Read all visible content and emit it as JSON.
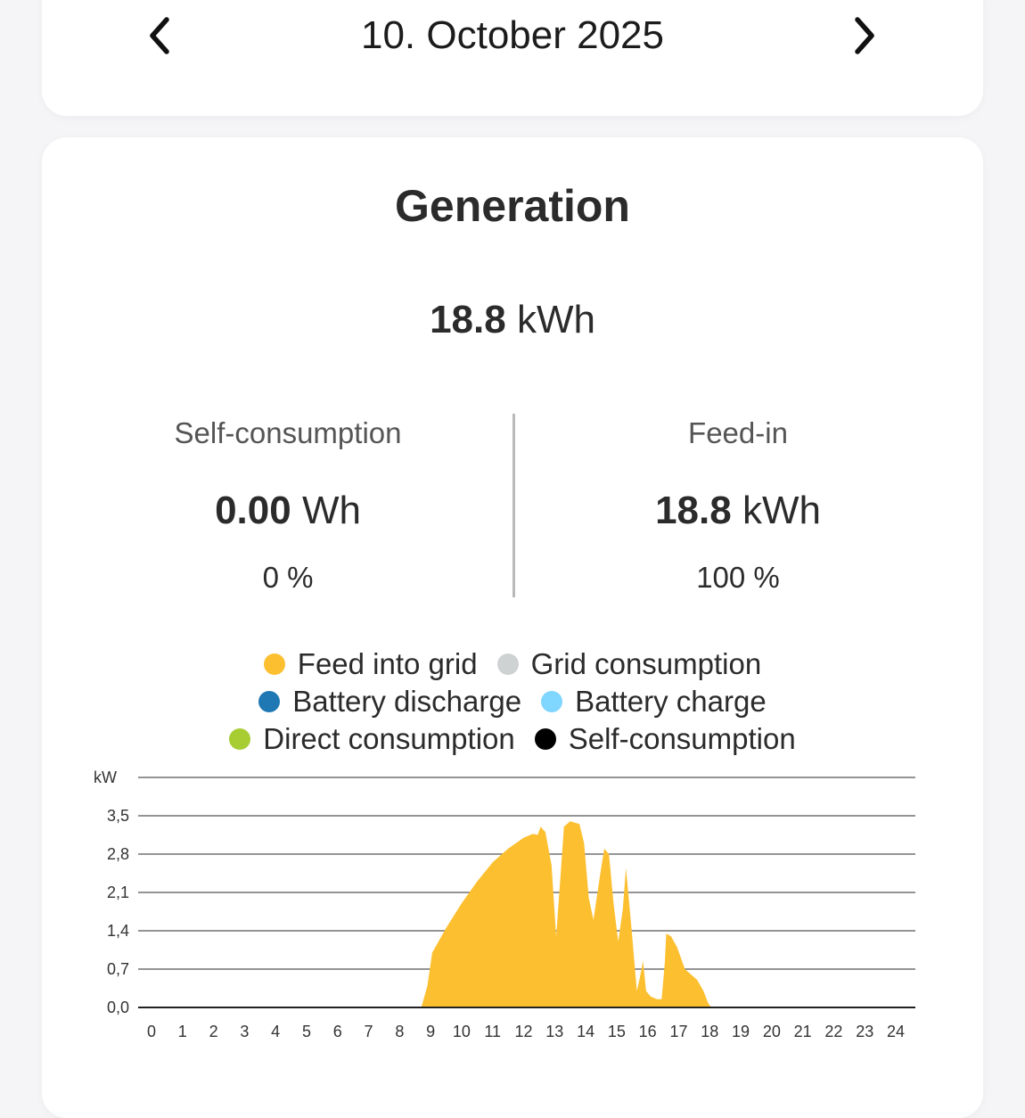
{
  "date_nav": {
    "date": "10. October 2025",
    "prev_icon": "chevron-left-icon",
    "next_icon": "chevron-right-icon"
  },
  "generation": {
    "title": "Generation",
    "total_value": "18.8",
    "total_unit": "kWh",
    "self_consumption": {
      "label": "Self-consumption",
      "value": "0.00",
      "unit": "Wh",
      "percent": "0 %"
    },
    "feed_in": {
      "label": "Feed-in",
      "value": "18.8",
      "unit": "kWh",
      "percent": "100 %"
    }
  },
  "legend": [
    {
      "label": "Feed into grid",
      "color": "#fcbf2f"
    },
    {
      "label": "Grid consumption",
      "color": "#cfd2d3"
    },
    {
      "label": "Battery discharge",
      "color": "#1f78b4"
    },
    {
      "label": "Battery charge",
      "color": "#7fd6ff"
    },
    {
      "label": "Direct consumption",
      "color": "#a8cd33"
    },
    {
      "label": "Self-consumption",
      "color": "#000000"
    }
  ],
  "chart_data": {
    "type": "area",
    "ylabel": "kW",
    "y_ticks": [
      "3,5",
      "2,8",
      "2,1",
      "1,4",
      "0,7",
      "0,0"
    ],
    "y_tick_values": [
      3.5,
      2.8,
      2.1,
      1.4,
      0.7,
      0.0
    ],
    "ylim": [
      0,
      4.2
    ],
    "x_ticks": [
      "0",
      "1",
      "2",
      "3",
      "4",
      "5",
      "6",
      "7",
      "8",
      "9",
      "10",
      "11",
      "12",
      "13",
      "14",
      "15",
      "16",
      "17",
      "18",
      "19",
      "20",
      "21",
      "22",
      "23",
      "24"
    ],
    "xlim": [
      0,
      24
    ],
    "grid": true,
    "series": [
      {
        "name": "Feed into grid",
        "color": "#fcbf2f",
        "points": [
          [
            0,
            0
          ],
          [
            8.7,
            0
          ],
          [
            8.9,
            0.4
          ],
          [
            9.05,
            1.0
          ],
          [
            9.5,
            1.45
          ],
          [
            10,
            1.9
          ],
          [
            10.5,
            2.3
          ],
          [
            11,
            2.65
          ],
          [
            11.5,
            2.9
          ],
          [
            12,
            3.1
          ],
          [
            12.3,
            3.17
          ],
          [
            12.45,
            3.15
          ],
          [
            12.55,
            3.3
          ],
          [
            12.7,
            3.2
          ],
          [
            12.9,
            2.6
          ],
          [
            13.05,
            1.3
          ],
          [
            13.2,
            2.5
          ],
          [
            13.3,
            3.3
          ],
          [
            13.5,
            3.4
          ],
          [
            13.8,
            3.35
          ],
          [
            13.95,
            3.0
          ],
          [
            14.1,
            2.0
          ],
          [
            14.25,
            1.6
          ],
          [
            14.5,
            2.55
          ],
          [
            14.6,
            2.9
          ],
          [
            14.75,
            2.8
          ],
          [
            14.9,
            1.9
          ],
          [
            15.05,
            1.2
          ],
          [
            15.2,
            1.8
          ],
          [
            15.3,
            2.55
          ],
          [
            15.5,
            1.3
          ],
          [
            15.65,
            0.3
          ],
          [
            15.75,
            0.55
          ],
          [
            15.85,
            0.85
          ],
          [
            15.95,
            0.3
          ],
          [
            16.1,
            0.2
          ],
          [
            16.3,
            0.15
          ],
          [
            16.45,
            0.15
          ],
          [
            16.55,
            0.8
          ],
          [
            16.6,
            1.35
          ],
          [
            16.75,
            1.3
          ],
          [
            16.95,
            1.1
          ],
          [
            17.2,
            0.7
          ],
          [
            17.4,
            0.6
          ],
          [
            17.6,
            0.5
          ],
          [
            17.8,
            0.3
          ],
          [
            17.95,
            0.08
          ],
          [
            18.05,
            0
          ],
          [
            24,
            0
          ]
        ]
      }
    ]
  }
}
